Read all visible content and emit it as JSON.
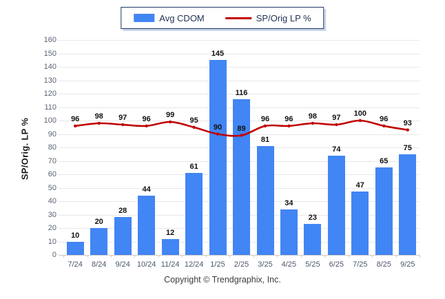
{
  "chart_data": {
    "type": "bar",
    "categories": [
      "7/24",
      "8/24",
      "9/24",
      "10/24",
      "11/24",
      "12/24",
      "1/25",
      "2/25",
      "3/25",
      "4/25",
      "5/25",
      "6/25",
      "7/25",
      "8/25",
      "9/25"
    ],
    "series": [
      {
        "name": "Avg CDOM",
        "type": "bar",
        "color": "#4285f4",
        "values": [
          10,
          20,
          28,
          44,
          12,
          61,
          145,
          116,
          81,
          34,
          23,
          74,
          47,
          65,
          75
        ]
      },
      {
        "name": "SP/Orig LP %",
        "type": "line",
        "color": "#c00000",
        "values": [
          96,
          98,
          97,
          96,
          99,
          95,
          90,
          89,
          96,
          96,
          98,
          97,
          100,
          96,
          93
        ]
      }
    ],
    "title": "",
    "xlabel": "",
    "ylabel": "SP/Orig. LP %",
    "ylim": [
      0,
      160
    ],
    "ytick_step": 10,
    "grid": true,
    "legend_position": "top-center",
    "footer": "Copyright © Trendgraphix, Inc."
  },
  "colors": {
    "bar": "#4285f4",
    "line": "#c00000",
    "grid": "#e7e7e7",
    "axis_line": "#c8c8c8",
    "axis_text": "#5a6475",
    "value_label_text": "#111111",
    "legend_border": "#1f3864",
    "legend_text": "#1f3050",
    "footer_text": "#3b3b3b"
  }
}
